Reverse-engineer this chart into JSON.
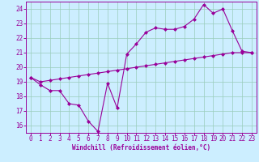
{
  "xlabel": "Windchill (Refroidissement éolien,°C)",
  "ylabel": "",
  "bg_color": "#cceeff",
  "grid_color": "#99ccbb",
  "line_color": "#990099",
  "xlim": [
    -0.5,
    23.5
  ],
  "ylim": [
    15.5,
    24.5
  ],
  "xticks": [
    0,
    1,
    2,
    3,
    4,
    5,
    6,
    7,
    8,
    9,
    10,
    11,
    12,
    13,
    14,
    15,
    16,
    17,
    18,
    19,
    20,
    21,
    22,
    23
  ],
  "yticks": [
    16,
    17,
    18,
    19,
    20,
    21,
    22,
    23,
    24
  ],
  "line1_x": [
    0,
    1,
    2,
    3,
    4,
    5,
    6,
    7,
    8,
    9,
    10,
    11,
    12,
    13,
    14,
    15,
    16,
    17,
    18,
    19,
    20,
    21,
    22,
    23
  ],
  "line1_y": [
    19.3,
    18.8,
    18.4,
    18.4,
    17.5,
    17.4,
    16.3,
    15.6,
    18.9,
    17.2,
    20.9,
    21.6,
    22.4,
    22.7,
    22.6,
    22.6,
    22.8,
    23.3,
    24.3,
    23.7,
    24.0,
    22.5,
    21.1,
    21.0
  ],
  "line2_x": [
    0,
    1,
    2,
    3,
    4,
    5,
    6,
    7,
    8,
    9,
    10,
    11,
    12,
    13,
    14,
    15,
    16,
    17,
    18,
    19,
    20,
    21,
    22,
    23
  ],
  "line2_y": [
    19.3,
    19.0,
    19.1,
    19.2,
    19.3,
    19.4,
    19.5,
    19.6,
    19.7,
    19.8,
    19.9,
    20.0,
    20.1,
    20.2,
    20.3,
    20.4,
    20.5,
    20.6,
    20.7,
    20.8,
    20.9,
    21.0,
    21.0,
    21.0
  ],
  "marker": "D",
  "markersize": 2.0,
  "linewidth": 0.8,
  "tick_fontsize": 5.5,
  "xlabel_fontsize": 5.5
}
